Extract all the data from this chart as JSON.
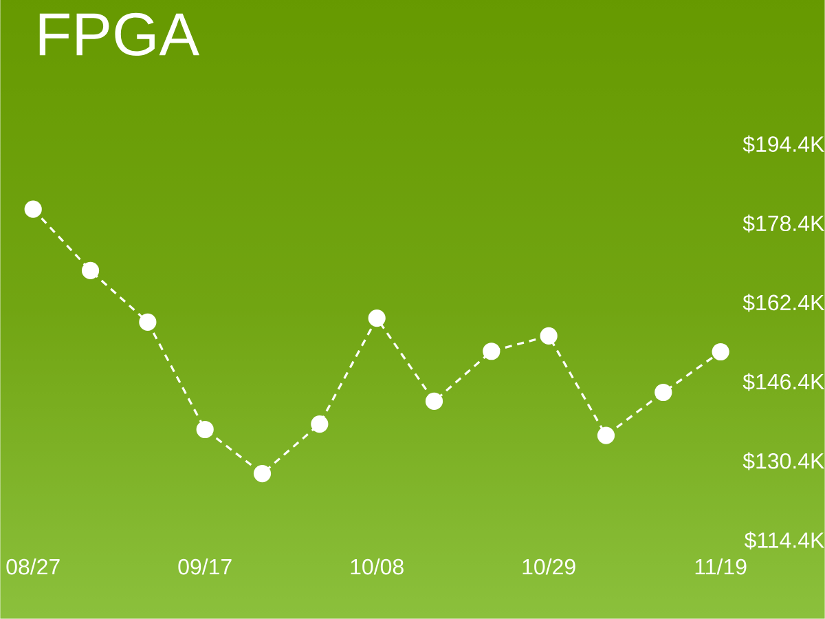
{
  "chart_data": {
    "type": "line",
    "title": "FPGA",
    "categories": [
      "08/27",
      null,
      null,
      "09/17",
      null,
      null,
      "10/08",
      null,
      null,
      "10/29",
      null,
      null,
      "11/19"
    ],
    "series": [
      {
        "color": "#ffffff",
        "values": [
          181.3,
          168.9,
          158.5,
          136.8,
          127.9,
          137.9,
          159.3,
          142.5,
          152.6,
          155.7,
          135.6,
          144.3,
          152.5
        ]
      }
    ],
    "ylim": [
      114.4,
      194.4
    ],
    "yticks": [
      {
        "value": 114.4,
        "label": "$114.4K"
      },
      {
        "value": 130.4,
        "label": "$130.4K"
      },
      {
        "value": 146.4,
        "label": "$146.4K"
      },
      {
        "value": 162.4,
        "label": "$162.4K"
      },
      {
        "value": 178.4,
        "label": "$178.4K"
      },
      {
        "value": 194.4,
        "label": "$194.4K"
      }
    ],
    "marker": "circle",
    "line_style": "dashed"
  }
}
